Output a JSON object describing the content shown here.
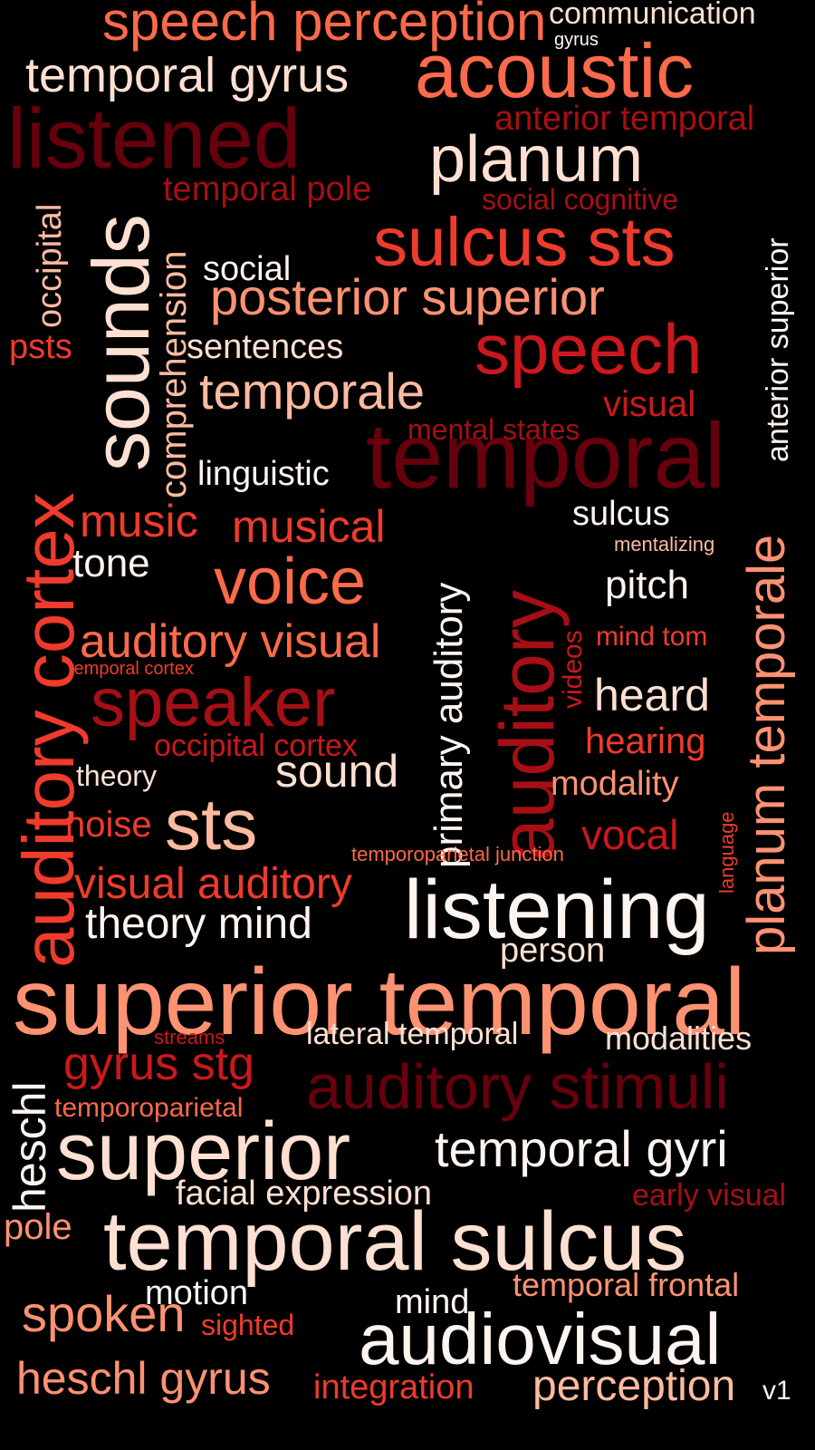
{
  "colors": {
    "background": "#000000",
    "palette": [
      "#FFF5F0",
      "#FEE0D2",
      "#FCBBA1",
      "#FC9272",
      "#FB6A4A",
      "#EF3B2C",
      "#CB181D",
      "#A50F15",
      "#67000D"
    ]
  },
  "words": [
    {
      "text": "speech perception",
      "color": "#FB6A4A"
    },
    {
      "text": "communication",
      "color": "#FEE0D2"
    },
    {
      "text": "gyrus",
      "color": "#FFF5F0"
    },
    {
      "text": "temporal gyrus",
      "color": "#FEE0D2"
    },
    {
      "text": "acoustic",
      "color": "#FB6A4A"
    },
    {
      "text": "anterior temporal",
      "color": "#A50F15"
    },
    {
      "text": "listened",
      "color": "#67000D"
    },
    {
      "text": "planum",
      "color": "#FEE0D2"
    },
    {
      "text": "temporal pole",
      "color": "#A50F15"
    },
    {
      "text": "social cognitive",
      "color": "#A50F15"
    },
    {
      "text": "occipital",
      "color": "#FCBBA1"
    },
    {
      "text": "sounds",
      "color": "#FEE0D2"
    },
    {
      "text": "comprehension",
      "color": "#FCBBA1"
    },
    {
      "text": "sulcus sts",
      "color": "#EF3B2C"
    },
    {
      "text": "social",
      "color": "#FFF5F0"
    },
    {
      "text": "posterior superior",
      "color": "#FC9272"
    },
    {
      "text": "anterior superior",
      "color": "#FFF5F0"
    },
    {
      "text": "psts",
      "color": "#EF3B2C"
    },
    {
      "text": "sentences",
      "color": "#FEE0D2"
    },
    {
      "text": "speech",
      "color": "#CB181D"
    },
    {
      "text": "temporale",
      "color": "#FCBBA1"
    },
    {
      "text": "visual",
      "color": "#CB181D"
    },
    {
      "text": "mental states",
      "color": "#A50F15"
    },
    {
      "text": "temporal",
      "color": "#67000D"
    },
    {
      "text": "auditory cortex",
      "color": "#EF3B2C"
    },
    {
      "text": "linguistic",
      "color": "#FFF5F0"
    },
    {
      "text": "planum temporale",
      "color": "#FC9272"
    },
    {
      "text": "music",
      "color": "#EF3B2C"
    },
    {
      "text": "musical",
      "color": "#EF3B2C"
    },
    {
      "text": "primary auditory",
      "color": "#FFF5F0"
    },
    {
      "text": "auditory",
      "color": "#A50F15"
    },
    {
      "text": "sulcus",
      "color": "#FFF5F0"
    },
    {
      "text": "mentalizing",
      "color": "#FCBBA1"
    },
    {
      "text": "tone",
      "color": "#FFF5F0"
    },
    {
      "text": "voice",
      "color": "#FB6A4A"
    },
    {
      "text": "pitch",
      "color": "#FFF5F0"
    },
    {
      "text": "videos",
      "color": "#CB181D"
    },
    {
      "text": "auditory visual",
      "color": "#FB6A4A"
    },
    {
      "text": "mind tom",
      "color": "#EF3B2C"
    },
    {
      "text": "temporal cortex",
      "color": "#EF3B2C"
    },
    {
      "text": "speaker",
      "color": "#A50F15"
    },
    {
      "text": "heard",
      "color": "#FEE0D2"
    },
    {
      "text": "occipital cortex",
      "color": "#CB181D"
    },
    {
      "text": "hearing",
      "color": "#EF3B2C"
    },
    {
      "text": "theory",
      "color": "#FEE0D2"
    },
    {
      "text": "sound",
      "color": "#FEE0D2"
    },
    {
      "text": "modality",
      "color": "#FC9272"
    },
    {
      "text": "noise",
      "color": "#EF3B2C"
    },
    {
      "text": "sts",
      "color": "#FCBBA1"
    },
    {
      "text": "language",
      "color": "#EF3B2C"
    },
    {
      "text": "vocal",
      "color": "#CB181D"
    },
    {
      "text": "temporoparietal junction",
      "color": "#FB6A4A"
    },
    {
      "text": "visual auditory",
      "color": "#EF3B2C"
    },
    {
      "text": "listening",
      "color": "#FFF5F0"
    },
    {
      "text": "theory mind",
      "color": "#FFF5F0"
    },
    {
      "text": "person",
      "color": "#FEE0D2"
    },
    {
      "text": "superior temporal",
      "color": "#FC9272"
    },
    {
      "text": "heschl",
      "color": "#FFF5F0"
    },
    {
      "text": "streams",
      "color": "#CB181D"
    },
    {
      "text": "lateral temporal",
      "color": "#FEE0D2"
    },
    {
      "text": "modalities",
      "color": "#FEE0D2"
    },
    {
      "text": "gyrus stg",
      "color": "#CB181D"
    },
    {
      "text": "auditory stimuli",
      "color": "#67000D"
    },
    {
      "text": "temporoparietal",
      "color": "#FB6A4A"
    },
    {
      "text": "superior",
      "color": "#FEE0D2"
    },
    {
      "text": "temporal gyri",
      "color": "#FFF5F0"
    },
    {
      "text": "facial expression",
      "color": "#FEE0D2"
    },
    {
      "text": "early visual",
      "color": "#A50F15"
    },
    {
      "text": "pole",
      "color": "#FC9272"
    },
    {
      "text": "temporal sulcus",
      "color": "#FEE0D2"
    },
    {
      "text": "motion",
      "color": "#FFF5F0"
    },
    {
      "text": "temporal frontal",
      "color": "#FC9272"
    },
    {
      "text": "mind",
      "color": "#FFF5F0"
    },
    {
      "text": "spoken",
      "color": "#FC9272"
    },
    {
      "text": "sighted",
      "color": "#EF3B2C"
    },
    {
      "text": "audiovisual",
      "color": "#FFF5F0"
    },
    {
      "text": "heschl gyrus",
      "color": "#FC9272"
    },
    {
      "text": "integration",
      "color": "#EF3B2C"
    },
    {
      "text": "perception",
      "color": "#FCBBA1"
    },
    {
      "text": "v1",
      "color": "#FFF5F0"
    }
  ]
}
